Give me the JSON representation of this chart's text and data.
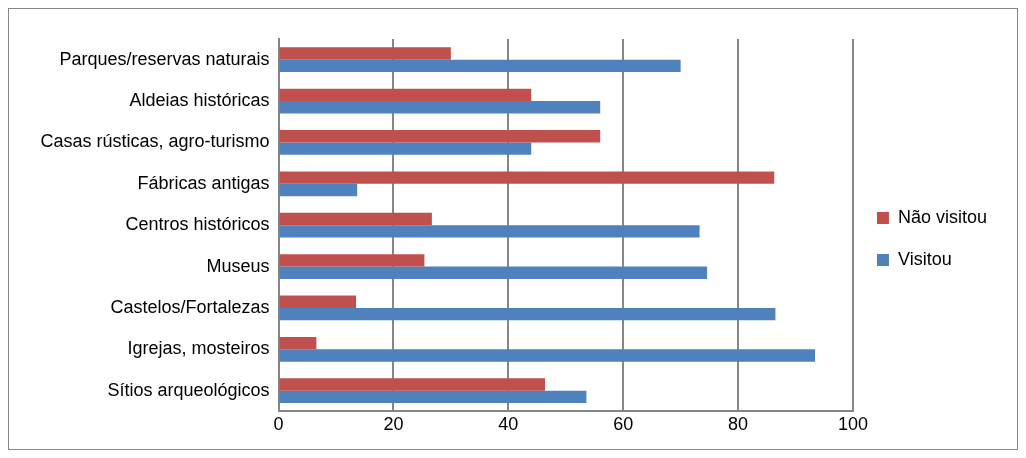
{
  "chart_data": {
    "type": "bar",
    "orientation": "horizontal",
    "categories": [
      "Parques/reservas naturais",
      "Aldeias históricas",
      "Casas rústicas, agro-turismo",
      "Fábricas antigas",
      "Centros históricos",
      "Museus",
      "Castelos/Fortalezas",
      "Igrejas, mosteiros",
      "Sítios arqueológicos"
    ],
    "series": [
      {
        "name": "Não visitou",
        "color": "#c0504d",
        "values": [
          30,
          44,
          56,
          86.3,
          26.7,
          25.4,
          13.5,
          6.6,
          46.4
        ]
      },
      {
        "name": "Visitou",
        "color": "#4f81bd",
        "values": [
          70,
          56,
          44,
          13.7,
          73.3,
          74.6,
          86.5,
          93.4,
          53.6
        ]
      }
    ],
    "xlim": [
      0,
      100
    ],
    "xticks": [
      0,
      20,
      40,
      60,
      80,
      100
    ],
    "grid": "x",
    "legend": "right"
  }
}
